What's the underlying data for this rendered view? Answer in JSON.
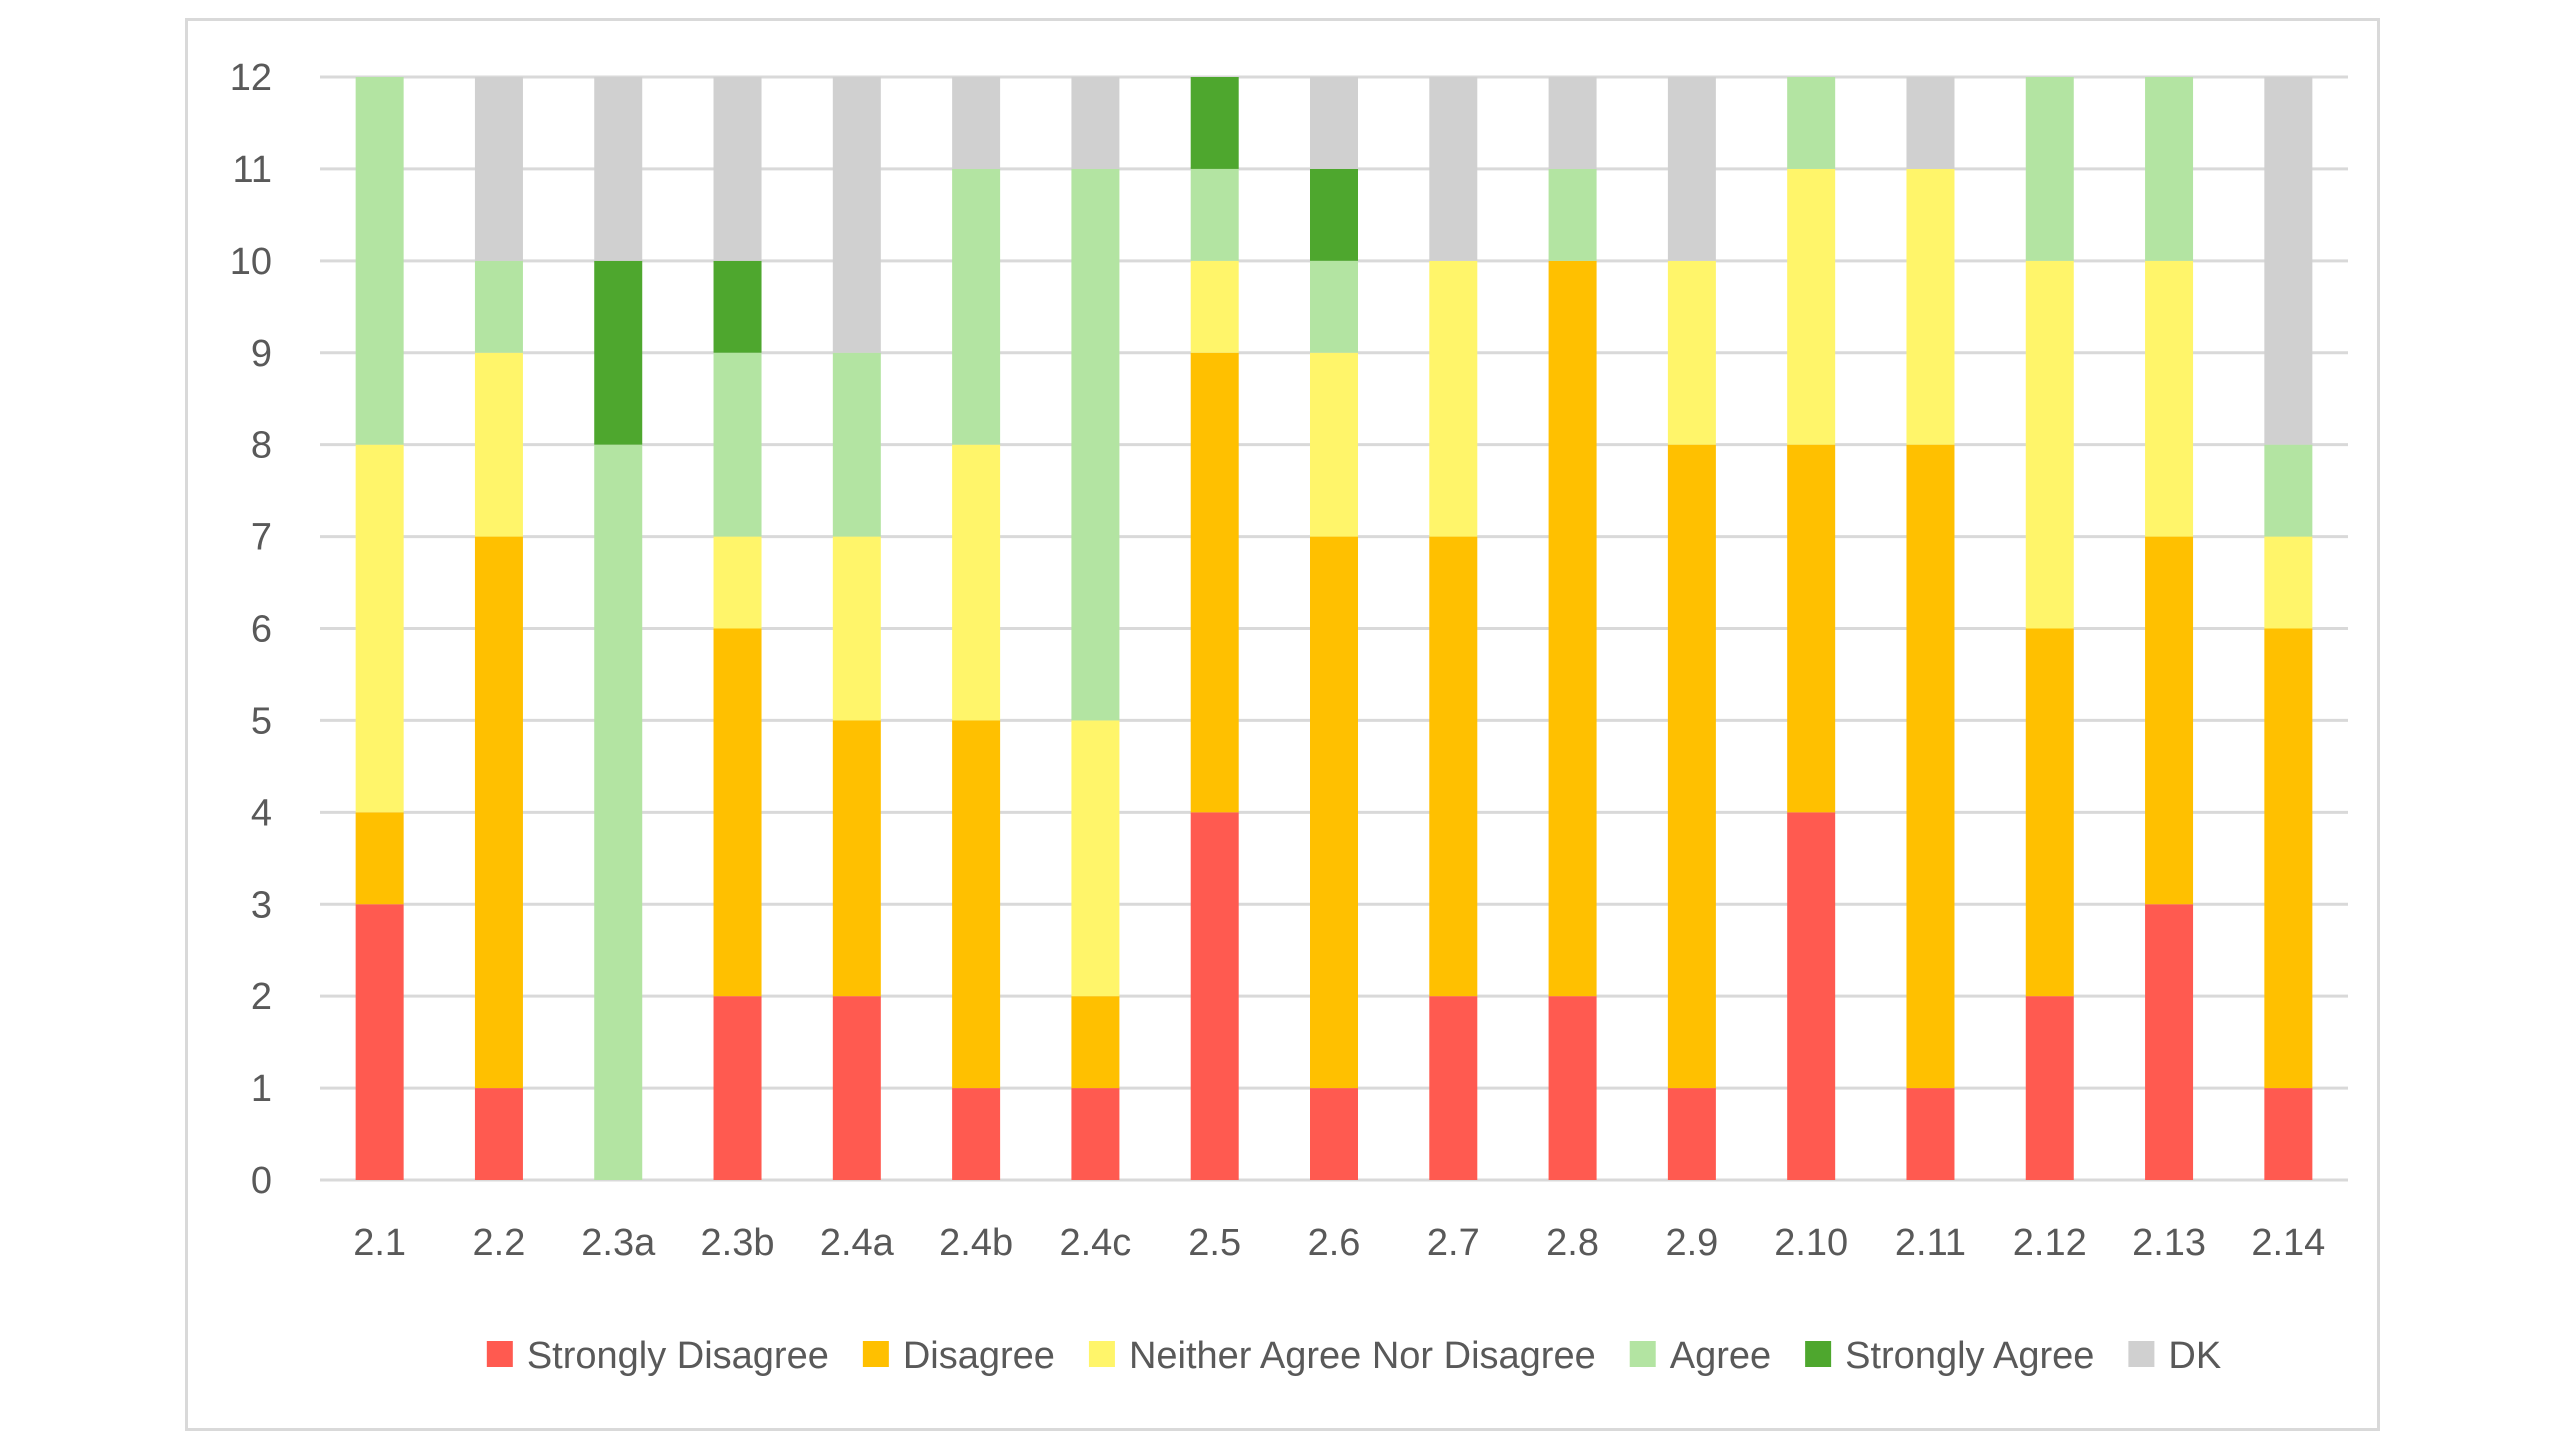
{
  "chart_data": {
    "type": "bar",
    "stacked": true,
    "title": "",
    "xlabel": "",
    "ylabel": "",
    "ylim": [
      0,
      12
    ],
    "yticks": [
      0,
      1,
      2,
      3,
      4,
      5,
      6,
      7,
      8,
      9,
      10,
      11,
      12
    ],
    "grid": "horizontal",
    "legend_position": "bottom",
    "categories": [
      "2.1",
      "2.2",
      "2.3a",
      "2.3b",
      "2.4a",
      "2.4b",
      "2.4c",
      "2.5",
      "2.6",
      "2.7",
      "2.8",
      "2.9",
      "2.10",
      "2.11",
      "2.12",
      "2.13",
      "2.14"
    ],
    "series": [
      {
        "name": "Strongly Disagree",
        "color": "#FF5A50",
        "values": [
          3,
          1,
          0,
          2,
          2,
          1,
          1,
          4,
          1,
          2,
          2,
          1,
          4,
          1,
          2,
          3,
          1
        ]
      },
      {
        "name": "Disagree",
        "color": "#FFC000",
        "values": [
          1,
          6,
          0,
          4,
          3,
          4,
          1,
          5,
          6,
          5,
          8,
          7,
          4,
          7,
          4,
          4,
          5
        ]
      },
      {
        "name": "Neither Agree Nor Disagree",
        "color": "#FFF56A",
        "values": [
          4,
          2,
          0,
          1,
          2,
          3,
          3,
          1,
          2,
          3,
          0,
          2,
          3,
          3,
          4,
          3,
          1
        ]
      },
      {
        "name": "Agree",
        "color": "#B3E4A2",
        "values": [
          4,
          1,
          8,
          2,
          2,
          3,
          6,
          1,
          1,
          0,
          1,
          0,
          1,
          0,
          2,
          2,
          1
        ]
      },
      {
        "name": "Strongly Agree",
        "color": "#4EA72E",
        "values": [
          0,
          0,
          2,
          1,
          0,
          0,
          0,
          1,
          1,
          0,
          0,
          0,
          0,
          0,
          0,
          0,
          0
        ]
      },
      {
        "name": "DK",
        "color": "#D0D0D0",
        "values": [
          0,
          2,
          2,
          2,
          3,
          1,
          1,
          0,
          1,
          2,
          1,
          2,
          0,
          1,
          0,
          0,
          4
        ]
      }
    ]
  }
}
